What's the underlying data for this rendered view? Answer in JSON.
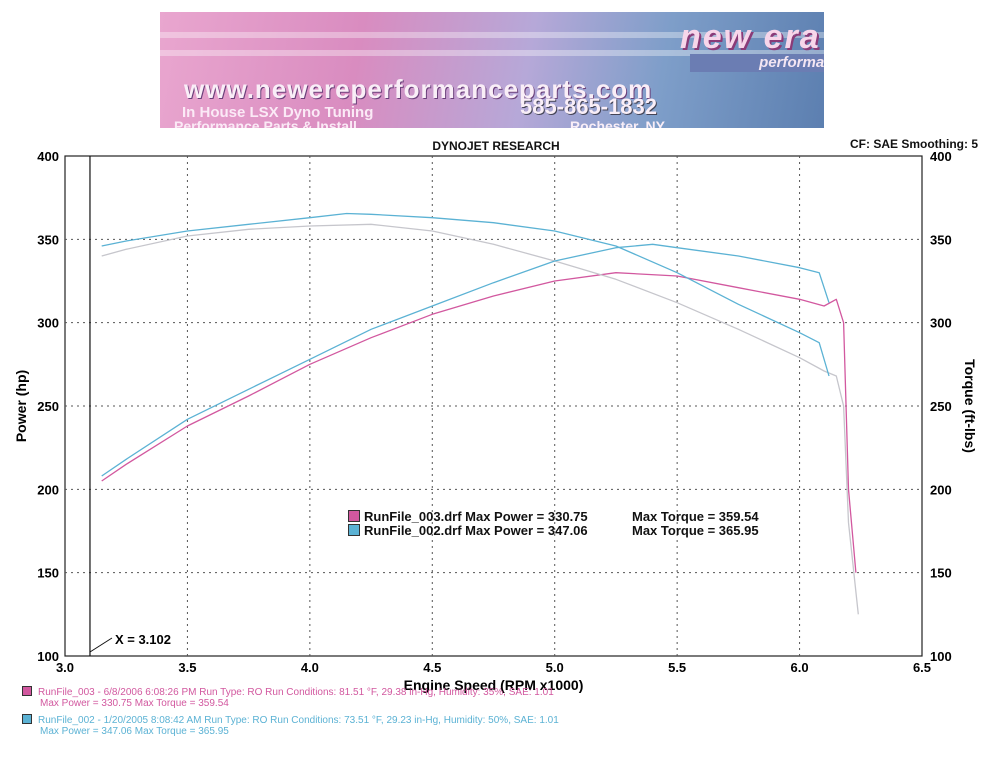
{
  "banner": {
    "logo": "new era",
    "tagline": "performance parts",
    "url": "www.newereperformanceparts.com",
    "line1": "In House LSX Dyno Tuning",
    "line2": "Performance Parts & Install",
    "phone": "585-865-1832",
    "city": "Rochester, NY"
  },
  "header": {
    "title": "DYNOJET RESEARCH",
    "cf": "CF: SAE  Smoothing: 5"
  },
  "chart_data": {
    "type": "line",
    "title": "DYNOJET RESEARCH",
    "xlabel": "Engine Speed (RPM x1000)",
    "ylabel": "Power (hp)",
    "y2label": "Torque (ft-lbs)",
    "xlim": [
      3.0,
      6.5
    ],
    "ylim": [
      100,
      400
    ],
    "y2lim": [
      100,
      400
    ],
    "xticks": [
      "3.0",
      "3.5",
      "4.0",
      "4.5",
      "5.0",
      "5.5",
      "6.0",
      "6.5"
    ],
    "yticks": [
      "100",
      "150",
      "200",
      "250",
      "300",
      "350",
      "400"
    ],
    "grid": true,
    "cursor": {
      "x": 3.102,
      "label": "X = 3.102"
    },
    "colors": {
      "run3": "#d2589f",
      "run3_torque": "#c6c6cc",
      "run2": "#5bb2d4"
    },
    "series": [
      {
        "run": "run3",
        "quantity": "power",
        "color": "#d2589f",
        "x": [
          3.15,
          3.25,
          3.5,
          3.75,
          4.0,
          4.25,
          4.5,
          4.75,
          5.0,
          5.25,
          5.5,
          5.75,
          6.0,
          6.1,
          6.15,
          6.18,
          6.2,
          6.23
        ],
        "y": [
          205,
          215,
          238,
          256,
          275,
          291,
          305,
          316,
          325,
          330,
          328,
          321,
          314,
          310,
          314,
          300,
          200,
          150
        ]
      },
      {
        "run": "run3",
        "quantity": "torque",
        "color": "#c6c6cc",
        "x": [
          3.15,
          3.25,
          3.5,
          3.75,
          4.0,
          4.25,
          4.5,
          4.75,
          5.0,
          5.25,
          5.5,
          5.75,
          6.0,
          6.1,
          6.15,
          6.18,
          6.2,
          6.24
        ],
        "y": [
          340,
          344,
          352,
          356,
          358,
          359,
          355,
          347,
          337,
          326,
          312,
          296,
          279,
          271,
          268,
          250,
          180,
          125
        ]
      },
      {
        "run": "run2",
        "quantity": "power",
        "color": "#5bb2d4",
        "x": [
          3.15,
          3.25,
          3.5,
          3.75,
          4.0,
          4.25,
          4.5,
          4.75,
          5.0,
          5.25,
          5.4,
          5.5,
          5.75,
          6.0,
          6.08,
          6.12
        ],
        "y": [
          208,
          218,
          242,
          260,
          278,
          296,
          310,
          324,
          337,
          345,
          347,
          345,
          340,
          333,
          330,
          312
        ]
      },
      {
        "run": "run2",
        "quantity": "torque",
        "color": "#5bb2d4",
        "x": [
          3.15,
          3.25,
          3.5,
          3.75,
          4.0,
          4.15,
          4.25,
          4.5,
          4.75,
          5.0,
          5.25,
          5.5,
          5.75,
          6.0,
          6.08,
          6.12
        ],
        "y": [
          346,
          349,
          355,
          359,
          363,
          365.5,
          365,
          363,
          360,
          355,
          346,
          330,
          311,
          294,
          288,
          268
        ]
      }
    ]
  },
  "legend": {
    "run3": {
      "name": "RunFile_003.drf",
      "power": "Max Power = 330.75",
      "torque": "Max Torque = 359.54"
    },
    "run2": {
      "name": "RunFile_002.drf",
      "power": "Max Power = 347.06",
      "torque": "Max Torque = 365.95"
    }
  },
  "footer": {
    "run3_line1": "RunFile_003 - 6/8/2006 6:08:26 PM  Run Type: RO  Run Conditions: 81.51 °F, 29.38 in-Hg,  Humidity:  35%, SAE: 1.01",
    "run3_line2": "Max Power = 330.75  Max Torque = 359.54",
    "run2_line1": "RunFile_002 - 1/20/2005 8:08:42 AM  Run Type: RO  Run Conditions: 73.51 °F, 29.23 in-Hg,  Humidity:  50%, SAE: 1.01",
    "run2_line2": "Max Power = 347.06  Max Torque = 365.95"
  }
}
